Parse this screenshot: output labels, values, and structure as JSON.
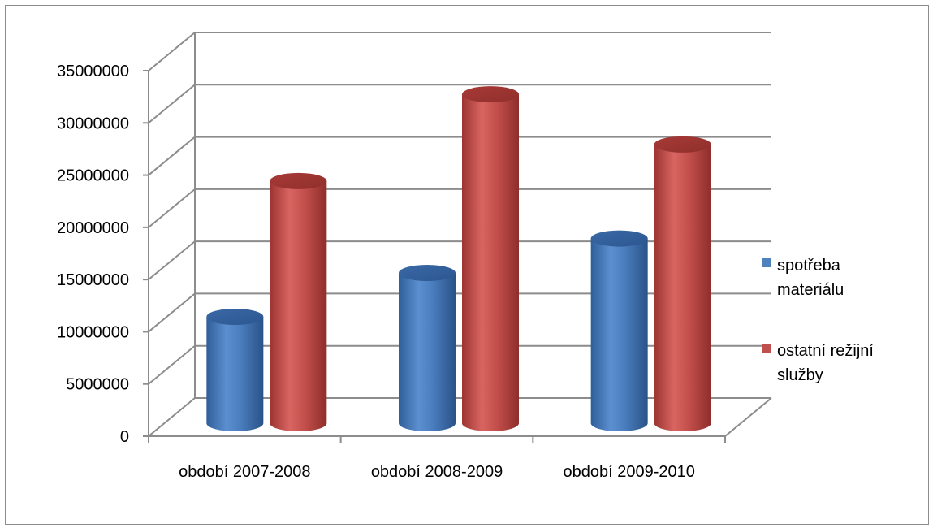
{
  "chart_data": {
    "type": "bar",
    "style": "3d-cylinder",
    "categories": [
      "období 2007-2008",
      "období 2008-2009",
      "období 2009-2010"
    ],
    "series": [
      {
        "name": "spotřeba materiálu",
        "legend_lines": [
          "spotřeba",
          "materiálu"
        ],
        "color": "#4f81bd",
        "values": [
          10500000,
          14700000,
          18000000
        ]
      },
      {
        "name": "ostatní režijní služby",
        "legend_lines": [
          "ostatní režijní",
          "služby"
        ],
        "color": "#c0504d",
        "values": [
          23500000,
          31800000,
          27000000
        ]
      }
    ],
    "yticks": [
      "0",
      "5000000",
      "10000000",
      "15000000",
      "20000000",
      "25000000",
      "30000000",
      "35000000"
    ],
    "ylim": [
      0,
      35000000
    ],
    "title": "",
    "xlabel": "",
    "ylabel": "",
    "grid": true,
    "legend_position": "right"
  }
}
